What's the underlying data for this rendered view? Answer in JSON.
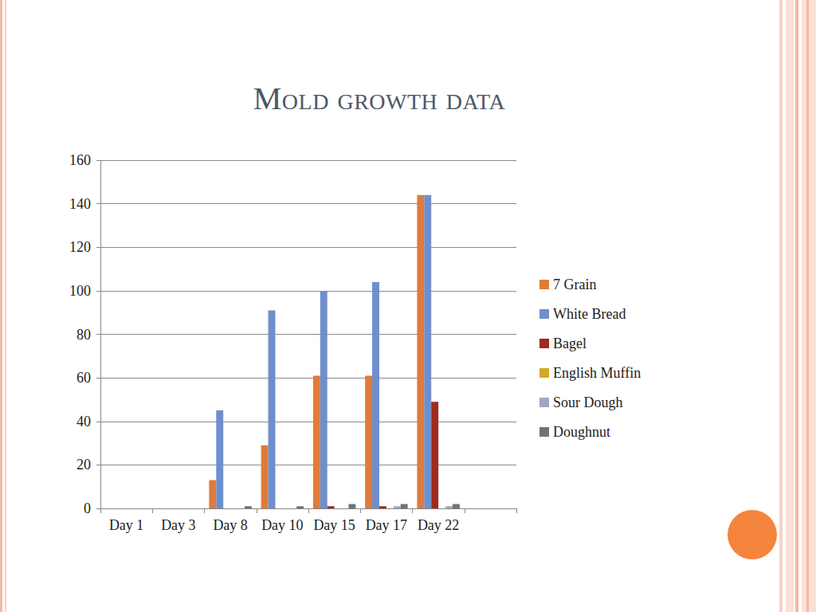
{
  "chart_data": {
    "type": "bar",
    "title": "Mold growth data",
    "categories": [
      "Day 1",
      "Day 3",
      "Day 8",
      "Day 10",
      "Day 15",
      "Day 17",
      "Day 22",
      null
    ],
    "series": [
      {
        "name": "7 Grain",
        "color": "#e07b39",
        "values": [
          0,
          0,
          13,
          29,
          61,
          61,
          144,
          null
        ]
      },
      {
        "name": "White Bread",
        "color": "#6f8fcb",
        "values": [
          0,
          0,
          45,
          91,
          100,
          104,
          144,
          null
        ]
      },
      {
        "name": "Bagel",
        "color": "#9e2a1e",
        "values": [
          0,
          0,
          0,
          0,
          1,
          1,
          49,
          null
        ]
      },
      {
        "name": "English Muffin",
        "color": "#d4a82a",
        "values": [
          0,
          0,
          0,
          0,
          0,
          0,
          0,
          null
        ]
      },
      {
        "name": "Sour Dough",
        "color": "#a0a8c0",
        "values": [
          0,
          0,
          0,
          0,
          0,
          1,
          1,
          null
        ]
      },
      {
        "name": "Doughnut",
        "color": "#6d7478",
        "values": [
          0,
          0,
          1,
          1,
          2,
          2,
          2,
          null
        ]
      }
    ],
    "ylim": [
      0,
      160
    ],
    "yticks": [
      0,
      20,
      40,
      60,
      80,
      100,
      120,
      140,
      160
    ],
    "grid": true,
    "legend": "right"
  }
}
